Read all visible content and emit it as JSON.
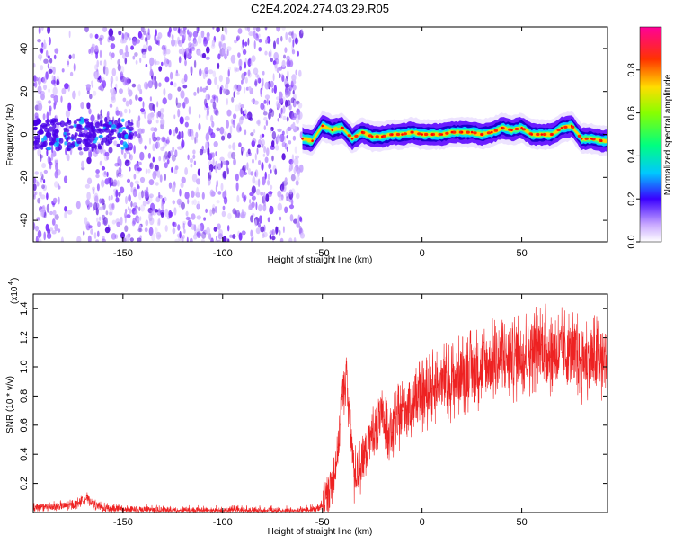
{
  "title": "C2E4.2024.274.03.29.R05",
  "chart_data": [
    {
      "type": "heatmap",
      "xlabel": "Height of straight line (km)",
      "ylabel": "Frequency (Hz)",
      "xlim": [
        -195,
        93
      ],
      "ylim": [
        -50,
        50
      ],
      "xticks": [
        -150,
        -100,
        -50,
        0,
        50
      ],
      "yticks": [
        -40,
        -20,
        0,
        20,
        40
      ],
      "colorbar": {
        "label": "Normalized spectral amplitude",
        "range": [
          0,
          1
        ],
        "ticks": [
          "0.0",
          "0.2",
          "0.4",
          "0.6",
          "0.8"
        ]
      },
      "ridge": {
        "x": [
          -60,
          -55,
          -50,
          -45,
          -40,
          -35,
          -30,
          -25,
          -20,
          -15,
          -10,
          -5,
          0,
          5,
          10,
          15,
          20,
          25,
          30,
          35,
          40,
          45,
          50,
          55,
          60,
          65,
          70,
          75,
          80,
          85,
          90
        ],
        "frequency": [
          -2,
          -3,
          4,
          2,
          3,
          -2,
          1,
          -1,
          -1,
          0,
          0,
          1,
          0,
          0,
          0,
          1,
          1,
          1,
          0,
          1,
          3,
          2,
          3,
          0,
          0,
          0,
          3,
          4,
          -2,
          -2,
          -3
        ]
      }
    },
    {
      "type": "line",
      "xlabel": "Height of straight line (km)",
      "ylabel": "SNR (10 * v/v)",
      "multiplier": "(x10",
      "multiplier_exp": "4",
      "xlim": [
        -195,
        93
      ],
      "ylim": [
        0,
        1.5
      ],
      "xticks": [
        -150,
        -100,
        -50,
        0,
        50
      ],
      "yticks": [
        "0.2",
        "0.4",
        "0.6",
        "0.8",
        "1.0",
        "1.2",
        "1.4"
      ],
      "color": "#ee2222",
      "x": [
        -195,
        -185,
        -175,
        -168,
        -165,
        -160,
        -150,
        -120,
        -100,
        -80,
        -60,
        -52,
        -48,
        -45,
        -42,
        -40,
        -38,
        -36,
        -34,
        -30,
        -25,
        -20,
        -15,
        -10,
        -5,
        0,
        5,
        10,
        15,
        20,
        25,
        30,
        40,
        50,
        55,
        60,
        65,
        70,
        75,
        80,
        85,
        93
      ],
      "values": [
        0.03,
        0.04,
        0.05,
        0.1,
        0.06,
        0.03,
        0.02,
        0.01,
        0.01,
        0.01,
        0.01,
        0.02,
        0.1,
        0.2,
        0.45,
        0.8,
        0.95,
        0.6,
        0.25,
        0.35,
        0.55,
        0.65,
        0.55,
        0.7,
        0.75,
        0.8,
        0.85,
        0.9,
        0.9,
        0.95,
        0.98,
        1.0,
        1.05,
        1.08,
        1.12,
        1.15,
        1.1,
        1.1,
        1.08,
        1.05,
        1.05,
        1.05
      ]
    }
  ]
}
